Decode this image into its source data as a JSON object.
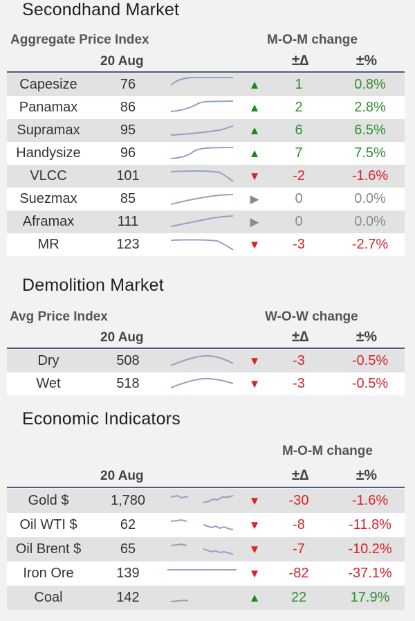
{
  "secondhand": {
    "title": "Secondhand Market",
    "index_label": "Aggregate Price Index",
    "change_label": "M-O-M change",
    "date": "20 Aug",
    "delta_hdr": "±∆",
    "pct_hdr": "±%",
    "rows": [
      {
        "name": "Capesize",
        "value": "76",
        "dir": "up",
        "delta": "1",
        "pct": "0.8%"
      },
      {
        "name": "Panamax",
        "value": "86",
        "dir": "up",
        "delta": "2",
        "pct": "2.8%"
      },
      {
        "name": "Supramax",
        "value": "95",
        "dir": "up",
        "delta": "6",
        "pct": "6.5%"
      },
      {
        "name": "Handysize",
        "value": "96",
        "dir": "up",
        "delta": "7",
        "pct": "7.5%"
      },
      {
        "name": "VLCC",
        "value": "101",
        "dir": "down",
        "delta": "-2",
        "pct": "-1.6%"
      },
      {
        "name": "Suezmax",
        "value": "85",
        "dir": "flat",
        "delta": "0",
        "pct": "0.0%"
      },
      {
        "name": "Aframax",
        "value": "111",
        "dir": "flat",
        "delta": "0",
        "pct": "0.0%"
      },
      {
        "name": "MR",
        "value": "123",
        "dir": "down",
        "delta": "-3",
        "pct": "-2.7%"
      }
    ]
  },
  "demolition": {
    "title": "Demolition Market",
    "index_label": "Avg Price Index",
    "change_label": "W-O-W change",
    "date": "20 Aug",
    "delta_hdr": "±∆",
    "pct_hdr": "±%",
    "rows": [
      {
        "name": "Dry",
        "value": "508",
        "dir": "down",
        "delta": "-3",
        "pct": "-0.5%"
      },
      {
        "name": "Wet",
        "value": "518",
        "dir": "down",
        "delta": "-3",
        "pct": "-0.5%"
      }
    ]
  },
  "economic": {
    "title": "Economic Indicators",
    "change_label": "M-O-M change",
    "date": "20 Aug",
    "delta_hdr": "±∆",
    "pct_hdr": "±%",
    "rows": [
      {
        "name": "Gold $",
        "value": "1,780",
        "dir": "down",
        "delta": "-30",
        "pct": "-1.6%"
      },
      {
        "name": "Oil WTI $",
        "value": "62",
        "dir": "down",
        "delta": "-8",
        "pct": "-11.8%"
      },
      {
        "name": "Oil Brent $",
        "value": "65",
        "dir": "down",
        "delta": "-7",
        "pct": "-10.2%"
      },
      {
        "name": "Iron Ore",
        "value": "139",
        "dir": "down",
        "delta": "-82",
        "pct": "-37.1%"
      },
      {
        "name": "Coal",
        "value": "142",
        "dir": "up",
        "delta": "22",
        "pct": "17.9%"
      }
    ]
  },
  "colors": {
    "up_arrow": "#1b8a25",
    "down_arrow": "#d9222b",
    "flat_arrow": "#8a8a8a",
    "sparkline": "#8fa3c0",
    "rule": "#4a5a78"
  }
}
